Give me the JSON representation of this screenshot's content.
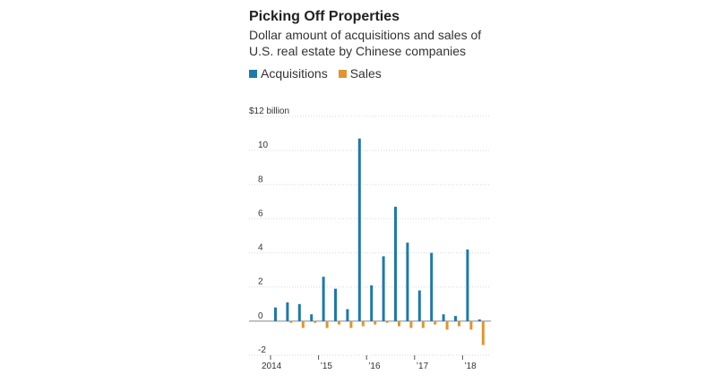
{
  "chart_data": {
    "type": "bar",
    "title": "Picking Off Properties",
    "subtitle": "Dollar amount of acquisitions and sales of U.S. real estate by Chinese companies",
    "ylabel_unit": "$12 billion",
    "ylim": [
      -2,
      12
    ],
    "y_ticks": [
      -2,
      0,
      2,
      4,
      6,
      8,
      10,
      12
    ],
    "y_tick_labels": [
      "-2",
      "0",
      "2",
      "4",
      "6",
      "8",
      "10",
      "$12 billion"
    ],
    "grid": true,
    "legend_position": "top-left",
    "x_tick_labels": [
      "2014",
      "’15",
      "’16",
      "’17",
      "’18"
    ],
    "categories": [
      "2014 Q1",
      "2014 Q2",
      "2014 Q3",
      "2014 Q4",
      "2015 Q1",
      "2015 Q2",
      "2015 Q3",
      "2015 Q4",
      "2016 Q1",
      "2016 Q2",
      "2016 Q3",
      "2016 Q4",
      "2017 Q1",
      "2017 Q2",
      "2017 Q3",
      "2017 Q4",
      "2018 Q1",
      "2018 Q2"
    ],
    "series": [
      {
        "name": "Acquisitions",
        "color": "#1f78ab",
        "values": [
          0.8,
          1.1,
          1.0,
          0.4,
          2.6,
          1.9,
          0.7,
          10.7,
          2.1,
          3.8,
          6.7,
          4.6,
          1.8,
          4.0,
          0.4,
          0.3,
          4.2,
          0.1
        ]
      },
      {
        "name": "Sales",
        "color": "#e0952e",
        "values": [
          0.0,
          -0.1,
          -0.4,
          -0.1,
          -0.4,
          -0.2,
          -0.4,
          -0.3,
          -0.2,
          -0.1,
          -0.3,
          -0.4,
          -0.4,
          -0.2,
          -0.5,
          -0.3,
          -0.5,
          -1.4
        ]
      }
    ]
  }
}
